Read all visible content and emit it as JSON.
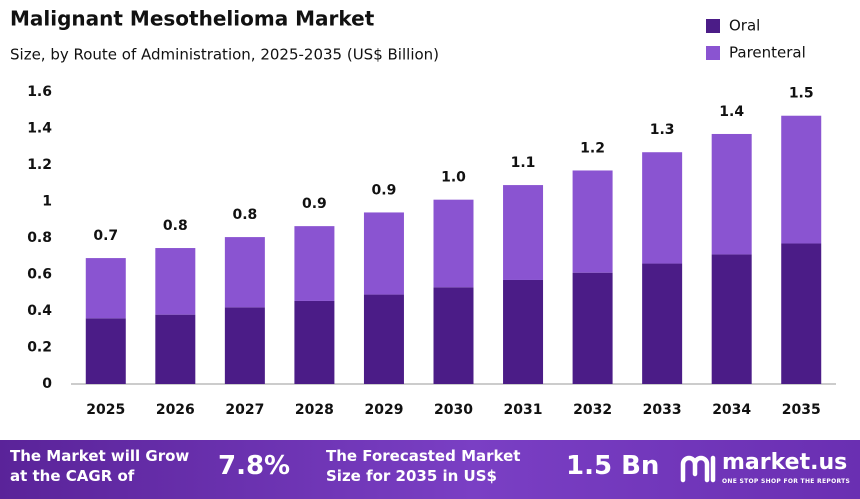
{
  "chart_data": {
    "type": "bar",
    "stacked": true,
    "title": "Malignant Mesothelioma Market",
    "subtitle": "Size, by Route of Administration, 2025-2035 (US$ Billion)",
    "categories": [
      "2025",
      "2026",
      "2027",
      "2028",
      "2029",
      "2030",
      "2031",
      "2032",
      "2033",
      "2034",
      "2035"
    ],
    "series": [
      {
        "name": "Oral",
        "color": "#4b1c87",
        "values": [
          0.36,
          0.38,
          0.42,
          0.455,
          0.49,
          0.53,
          0.57,
          0.61,
          0.66,
          0.71,
          0.77
        ]
      },
      {
        "name": "Parenteral",
        "color": "#8a54d1",
        "values": [
          0.33,
          0.365,
          0.385,
          0.41,
          0.45,
          0.48,
          0.52,
          0.56,
          0.61,
          0.66,
          0.7
        ]
      }
    ],
    "total_labels": [
      "0.7",
      "0.8",
      "0.8",
      "0.9",
      "0.9",
      "1.0",
      "1.1",
      "1.2",
      "1.3",
      "1.4",
      "1.5"
    ],
    "ylim": [
      0,
      1.6
    ],
    "yticks": [
      0,
      0.2,
      0.4,
      0.6,
      0.8,
      1,
      1.2,
      1.4,
      1.6
    ],
    "grid": false,
    "legend": "top-right"
  },
  "footer": {
    "cagr_label": [
      "The Market will Grow",
      "at the CAGR of"
    ],
    "cagr_value": "7.8%",
    "forecast_label": [
      "The Forecasted Market",
      "Size for 2035 in US$"
    ],
    "forecast_value": "1.5 Bn",
    "brand": "market.us",
    "tagline": "ONE STOP SHOP FOR THE REPORTS"
  }
}
